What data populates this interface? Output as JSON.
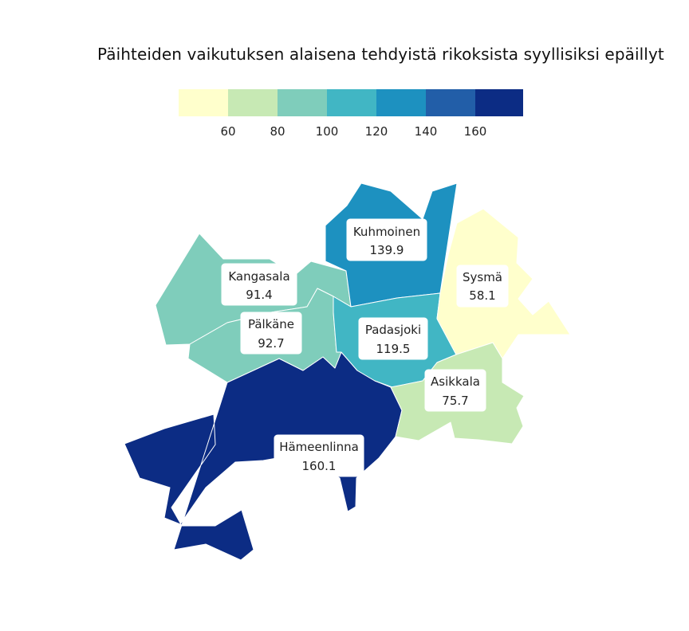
{
  "title": "Päihteiden vaikutuksen alaisena tehdyistä rikoksista syyllisiksi epäillyt",
  "legend": {
    "bins": [
      {
        "color": "#ffffcc"
      },
      {
        "color": "#c7e9b4"
      },
      {
        "color": "#7fcdbb"
      },
      {
        "color": "#41b6c4"
      },
      {
        "color": "#1d91c0"
      },
      {
        "color": "#225ea8"
      },
      {
        "color": "#0c2c84"
      }
    ],
    "ticks": [
      "60",
      "80",
      "100",
      "120",
      "140",
      "160"
    ]
  },
  "regions": [
    {
      "name": "Kuhmoinen",
      "value": "139.9",
      "color": "#1d91c0"
    },
    {
      "name": "Sysmä",
      "value": "58.1",
      "color": "#ffffcc"
    },
    {
      "name": "Kangasala",
      "value": "91.4",
      "color": "#7fcdbb"
    },
    {
      "name": "Pälkäne",
      "value": "92.7",
      "color": "#7fcdbb"
    },
    {
      "name": "Padasjoki",
      "value": "119.5",
      "color": "#41b6c4"
    },
    {
      "name": "Asikkala",
      "value": "75.7",
      "color": "#c7e9b4"
    },
    {
      "name": "Hämeenlinna",
      "value": "160.1",
      "color": "#0c2c84"
    }
  ]
}
